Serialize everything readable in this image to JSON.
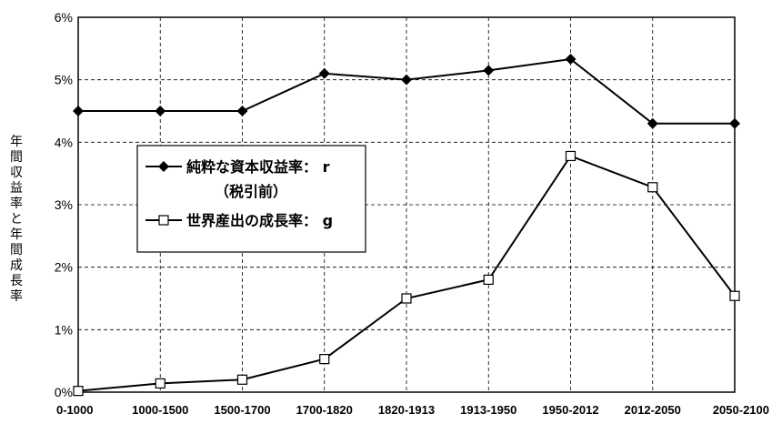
{
  "chart_data": {
    "type": "line",
    "categories": [
      "0-1000",
      "1000-1500",
      "1500-1700",
      "1700-1820",
      "1820-1913",
      "1913-1950",
      "1950-2012",
      "2012-2050",
      "2050-2100"
    ],
    "series": [
      {
        "name": "純粋な資本収益率：r（税引前）",
        "marker": "filled-diamond",
        "color": "#000000",
        "values": [
          4.5,
          4.5,
          4.5,
          5.1,
          5.0,
          5.15,
          5.33,
          4.3,
          4.3
        ]
      },
      {
        "name": "世界産出の成長率：g",
        "marker": "open-square",
        "color": "#000000",
        "values": [
          0.02,
          0.14,
          0.2,
          0.53,
          1.5,
          1.8,
          3.78,
          3.28,
          1.54
        ]
      }
    ],
    "ylabel": "年間収益率と年間成長率",
    "ylim": [
      0,
      6
    ],
    "yticks": [
      "0%",
      "1%",
      "2%",
      "3%",
      "4%",
      "5%",
      "6%"
    ],
    "grid": true,
    "grid_style": "dashed",
    "legend": {
      "position": "upper-left-inside",
      "line1": "純粋な資本収益率： r",
      "line2": "（税引前）",
      "line3": "世界産出の成長率： g"
    }
  }
}
